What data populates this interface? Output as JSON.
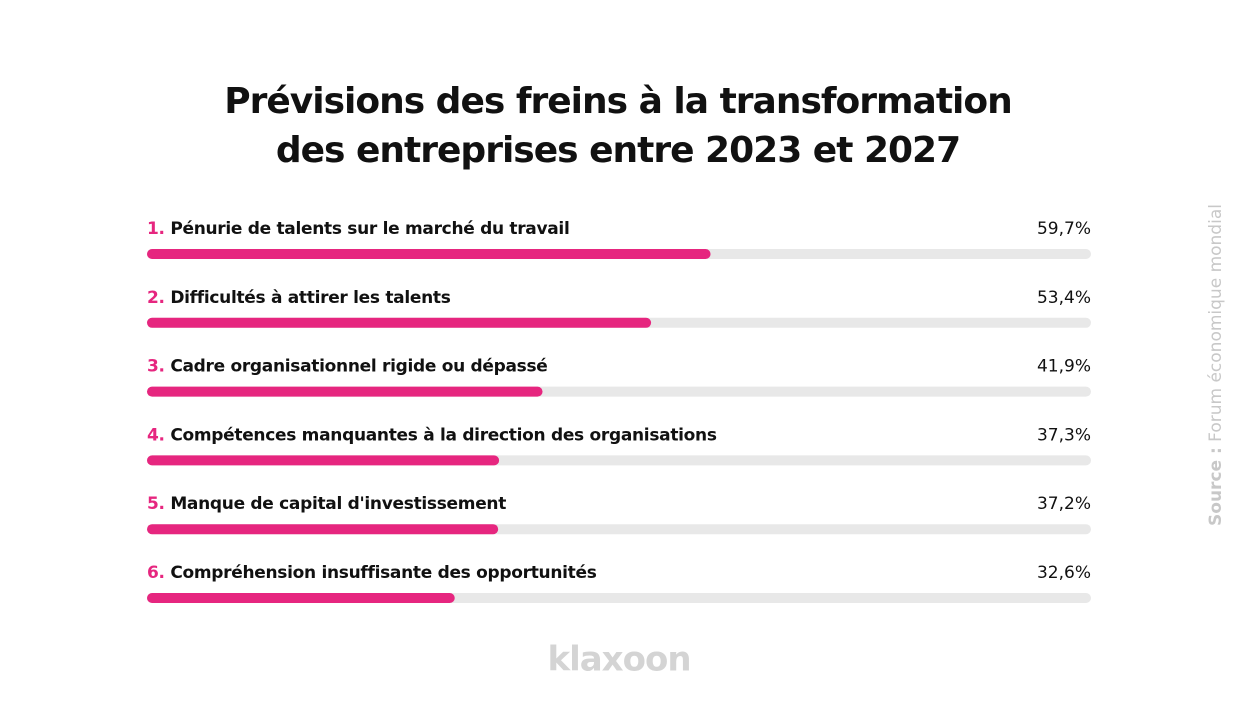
{
  "chart_data": {
    "type": "progress-bar",
    "title_lines": [
      "Prévisions des freins à la transformation",
      "des entreprises entre 2023 et 2027"
    ],
    "ranks": [
      "1.",
      "2.",
      "3.",
      "4.",
      "5.",
      "6."
    ],
    "categories": [
      "Pénurie de talents sur le marché du travail",
      "Difficultés à attirer les talents",
      "Cadre organisationnel rigide ou dépassé",
      "Compétences manquantes à la direction des organisations",
      "Manque de capital d'investissement",
      "Compréhension insuffisante des opportunités"
    ],
    "values": [
      59.7,
      53.4,
      41.9,
      37.3,
      37.2,
      32.6
    ],
    "value_labels": [
      "59,7%",
      "53,4%",
      "41,9%",
      "37,3%",
      "37,2%",
      "32,6%"
    ],
    "xlim": [
      0,
      100
    ],
    "color": "#e6267f",
    "track_color": "#e8e8e8",
    "source_label": "Source :",
    "source": "Forum économique mondial",
    "logo": "klaxoon"
  }
}
